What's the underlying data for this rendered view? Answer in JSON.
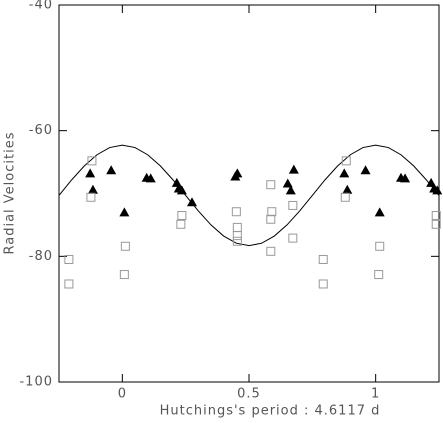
{
  "chart_data": {
    "type": "scatter",
    "xlabel": "Hutchings's period : 4.6117 d",
    "ylabel": "Radial Velocities",
    "xlim": [
      -0.25,
      1.25
    ],
    "xticks": [
      0,
      0.5,
      1
    ],
    "ylim": [
      -100,
      -40
    ],
    "yticks": [
      -100,
      -80,
      -60,
      -40
    ],
    "series": [
      {
        "marker": "line",
        "color": "#000000",
        "x": [
          -0.25,
          -0.2,
          -0.15,
          -0.1,
          -0.05,
          0,
          0.05,
          0.1,
          0.15,
          0.2,
          0.25,
          0.3,
          0.35,
          0.4,
          0.45,
          0.5,
          0.55,
          0.6,
          0.65,
          0.7,
          0.75,
          0.8,
          0.85,
          0.9,
          0.95,
          1,
          1.05,
          1.1,
          1.15,
          1.2,
          1.25
        ],
        "values": [
          -70.3,
          -67.83,
          -65.6,
          -63.83,
          -62.69,
          -62.3,
          -62.69,
          -63.83,
          -65.6,
          -67.83,
          -70.3,
          -72.77,
          -75.0,
          -76.77,
          -77.91,
          -78.3,
          -77.91,
          -76.77,
          -75.0,
          -72.77,
          -70.3,
          -67.83,
          -65.6,
          -63.83,
          -62.69,
          -62.3,
          -62.69,
          -63.83,
          -65.6,
          -67.83,
          -70.3
        ]
      },
      {
        "marker": "triangle",
        "color": "#000000",
        "x": [
          -0.127,
          -0.116,
          -0.044,
          0.008,
          0.096,
          0.112,
          0.215,
          0.223,
          0.235,
          0.275,
          0.446,
          0.454,
          0.653,
          0.665,
          0.677,
          0.876,
          0.888,
          0.96,
          1.016,
          1.1,
          1.116,
          1.219,
          1.231,
          1.243
        ],
        "values": [
          -66.8,
          -69.4,
          -66.3,
          -73.0,
          -67.5,
          -67.6,
          -68.3,
          -69.2,
          -69.5,
          -71.4,
          -67.3,
          -66.8,
          -68.4,
          -69.5,
          -66.2,
          -66.8,
          -69.4,
          -66.3,
          -73.0,
          -67.5,
          -67.6,
          -68.3,
          -69.2,
          -69.5
        ]
      },
      {
        "marker": "square",
        "color": "#999999",
        "x": [
          -0.211,
          -0.211,
          -0.12,
          -0.124,
          0.012,
          0.008,
          0.235,
          0.231,
          0.45,
          0.454,
          0.454,
          0.454,
          0.586,
          0.59,
          0.586,
          0.586,
          0.673,
          0.673,
          0.793,
          0.793,
          0.884,
          0.88,
          1.016,
          1.012,
          1.239,
          1.239
        ],
        "values": [
          -80.5,
          -84.4,
          -64.8,
          -70.6,
          -78.4,
          -82.9,
          -73.5,
          -74.9,
          -72.9,
          -75.4,
          -76.7,
          -77.6,
          -68.6,
          -72.9,
          -74.1,
          -79.2,
          -71.9,
          -77.1,
          -80.5,
          -84.4,
          -64.8,
          -70.6,
          -78.4,
          -82.9,
          -73.5,
          -74.9
        ]
      }
    ]
  }
}
